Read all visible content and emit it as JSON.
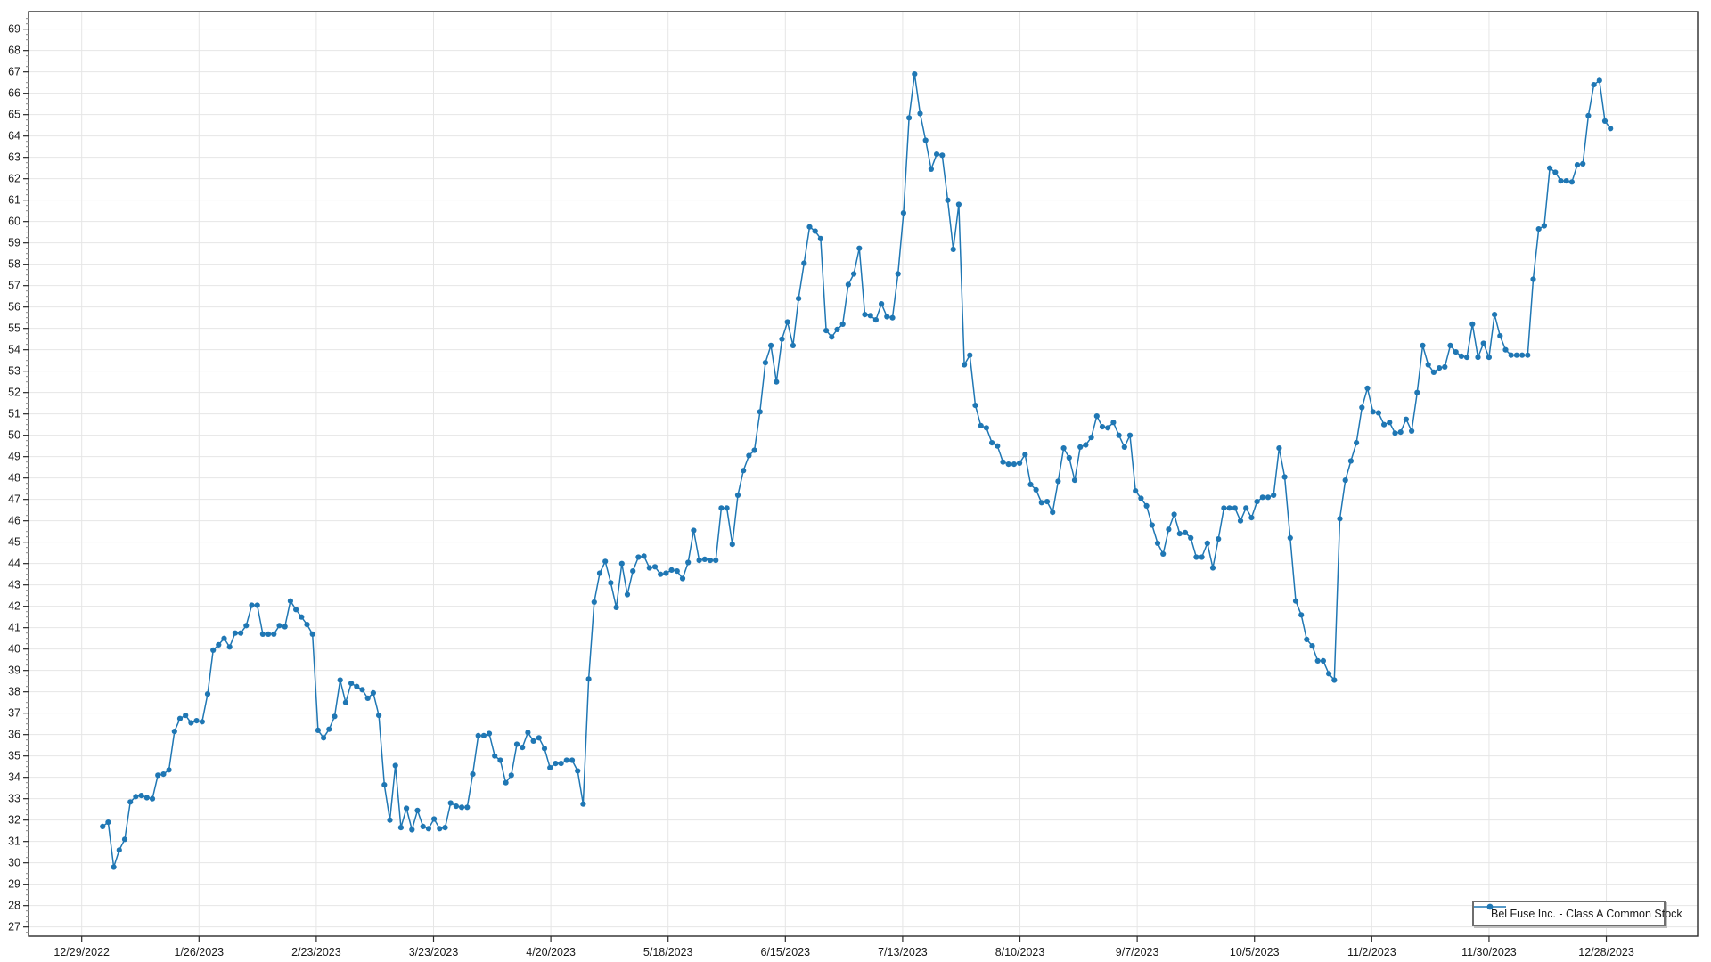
{
  "chart_data": {
    "type": "line",
    "title": "",
    "legend": {
      "label": "Bel Fuse Inc. - Class A Common Stock",
      "icon": "line-marker-icon",
      "position": "bottom-right"
    },
    "style": {
      "line_color": "#1f77b4",
      "marker_color": "#1f77b4",
      "grid_color": "#e6e6e6",
      "frame_color": "#2b2b2b",
      "label_color": "#1a1a1a",
      "minor_tick_color": "#8a8a8a"
    },
    "x_axis": {
      "tick_labels": [
        "12/29/2022",
        "1/26/2023",
        "2/23/2023",
        "3/23/2023",
        "4/20/2023",
        "5/18/2023",
        "6/15/2023",
        "7/13/2023",
        "8/10/2023",
        "9/7/2023",
        "10/5/2023",
        "11/2/2023",
        "11/30/2023",
        "12/28/2023"
      ],
      "tick_days": [
        0,
        28,
        56,
        84,
        112,
        140,
        168,
        196,
        224,
        252,
        280,
        308,
        336,
        364
      ],
      "day_range": [
        -12.7,
        385.8
      ],
      "grid": true
    },
    "y_axis": {
      "tick_min": 27,
      "tick_max": 69,
      "tick_step": 1,
      "range": [
        26.57,
        69.82
      ],
      "grid": true
    },
    "series": {
      "name": "Bel Fuse Inc. - Class A Common Stock",
      "first_point_day": 5,
      "last_point_day": 365,
      "values": [
        31.7,
        31.9,
        29.8,
        30.6,
        31.1,
        32.85,
        33.1,
        33.15,
        33.05,
        33.0,
        34.1,
        34.15,
        34.35,
        36.15,
        36.75,
        36.9,
        36.55,
        36.65,
        36.6,
        37.9,
        39.95,
        40.2,
        40.5,
        40.1,
        40.75,
        40.75,
        41.1,
        42.05,
        42.05,
        40.7,
        40.7,
        40.7,
        41.1,
        41.05,
        42.25,
        41.85,
        41.5,
        41.15,
        40.7,
        36.2,
        35.85,
        36.25,
        36.85,
        38.55,
        37.5,
        38.4,
        38.25,
        38.1,
        37.7,
        37.95,
        36.9,
        33.65,
        32.0,
        34.55,
        31.65,
        32.55,
        31.55,
        32.45,
        31.7,
        31.6,
        32.05,
        31.6,
        31.65,
        32.8,
        32.65,
        32.6,
        32.6,
        34.15,
        35.95,
        35.95,
        36.05,
        35.0,
        34.8,
        33.75,
        34.1,
        35.55,
        35.4,
        36.1,
        35.7,
        35.85,
        35.35,
        34.45,
        34.65,
        34.65,
        34.8,
        34.8,
        34.3,
        32.75,
        38.6,
        42.2,
        43.55,
        44.1,
        43.1,
        41.95,
        44.0,
        42.55,
        43.65,
        44.3,
        44.35,
        43.8,
        43.85,
        43.5,
        43.55,
        43.7,
        43.65,
        43.3,
        44.05,
        45.55,
        44.15,
        44.2,
        44.15,
        44.15,
        46.6,
        46.6,
        44.9,
        47.2,
        48.35,
        49.05,
        49.3,
        51.1,
        53.4,
        54.2,
        52.5,
        54.5,
        55.3,
        54.2,
        56.4,
        58.05,
        59.75,
        59.55,
        59.2,
        54.9,
        54.6,
        54.95,
        55.2,
        57.05,
        57.55,
        58.75,
        55.65,
        55.6,
        55.4,
        56.15,
        55.55,
        55.5,
        57.55,
        60.4,
        64.85,
        66.9,
        65.05,
        63.8,
        62.45,
        63.15,
        63.1,
        61.0,
        58.7,
        60.8,
        53.3,
        53.75,
        51.4,
        50.45,
        50.35,
        49.65,
        49.5,
        48.75,
        48.65,
        48.65,
        48.7,
        49.1,
        47.7,
        47.45,
        46.85,
        46.9,
        46.4,
        47.85,
        49.4,
        48.95,
        47.9,
        49.45,
        49.55,
        49.9,
        50.9,
        50.4,
        50.35,
        50.6,
        50.0,
        49.45,
        50.0,
        47.4,
        47.05,
        46.7,
        45.8,
        44.95,
        44.45,
        45.6,
        46.3,
        45.4,
        45.45,
        45.2,
        44.3,
        44.3,
        44.95,
        43.8,
        45.15,
        46.6,
        46.6,
        46.6,
        46.0,
        46.6,
        46.15,
        46.9,
        47.1,
        47.1,
        47.2,
        49.4,
        48.05,
        45.2,
        42.25,
        41.6,
        40.45,
        40.15,
        39.45,
        39.45,
        38.85,
        38.55,
        46.1,
        47.9,
        48.8,
        49.65,
        51.3,
        52.2,
        51.1,
        51.05,
        50.5,
        50.6,
        50.1,
        50.15,
        50.75,
        50.2,
        52.0,
        54.2,
        53.3,
        52.95,
        53.15,
        53.2,
        54.2,
        53.9,
        53.7,
        53.65,
        55.2,
        53.65,
        54.3,
        53.65,
        55.65,
        54.65,
        54.0,
        53.75,
        53.75,
        53.75,
        53.75,
        57.3,
        59.65,
        59.8,
        62.5,
        62.3,
        61.9,
        61.9,
        61.85,
        62.65,
        62.7,
        64.95,
        66.4,
        66.6,
        64.7,
        64.35
      ]
    }
  }
}
